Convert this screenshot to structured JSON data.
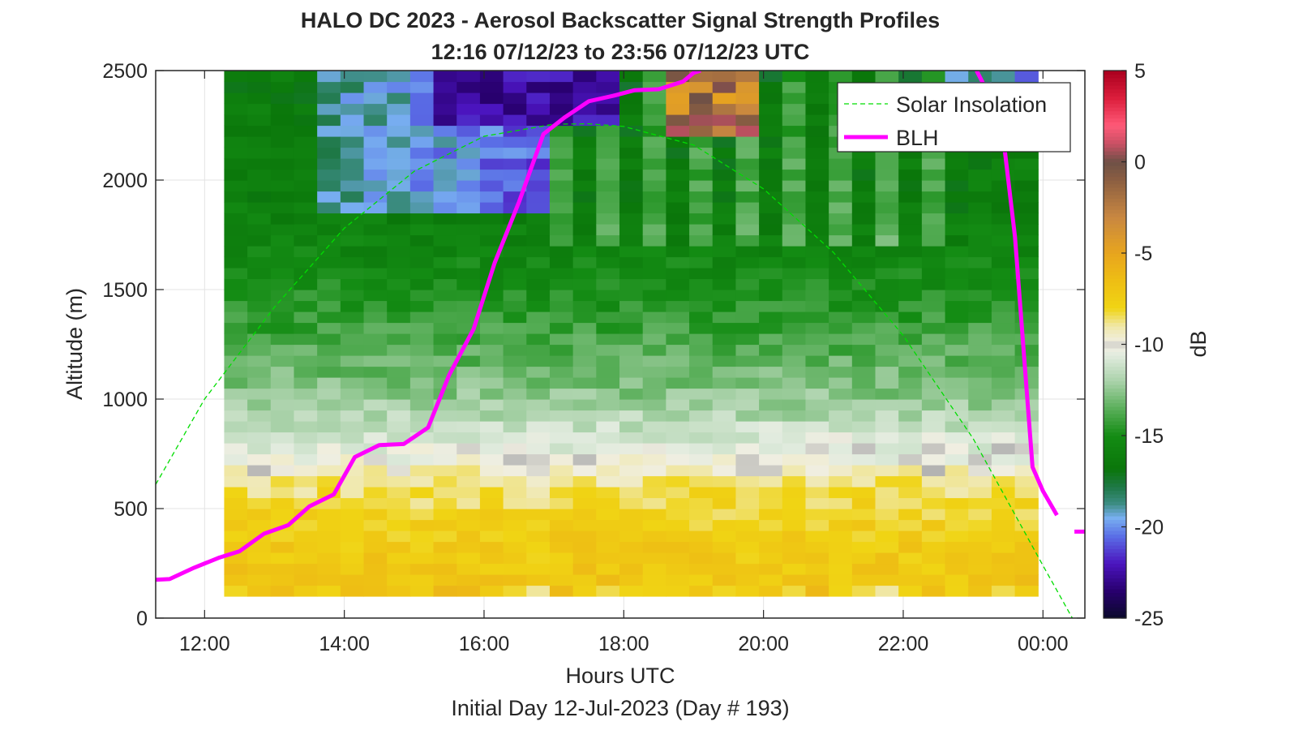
{
  "chart_data": {
    "type": "heatmap",
    "title": "HALO DC 2023 - Aerosol Backscatter Signal Strength Profiles",
    "subtitle": "12:16 07/12/23 to 23:56 07/12/23  UTC",
    "xlabel": "Hours UTC",
    "xlabel2": "Initial Day 12-Jul-2023 (Day # 193)",
    "ylabel": "Altitude (m)",
    "colorbar_label": "dB",
    "xlim_hours": [
      11.3,
      24.6
    ],
    "ylim": [
      0,
      2500
    ],
    "x_ticks": [
      {
        "value": 12,
        "label": "12:00"
      },
      {
        "value": 14,
        "label": "14:00"
      },
      {
        "value": 16,
        "label": "16:00"
      },
      {
        "value": 18,
        "label": "18:00"
      },
      {
        "value": 20,
        "label": "20:00"
      },
      {
        "value": 22,
        "label": "22:00"
      },
      {
        "value": 24,
        "label": "00:00"
      }
    ],
    "y_ticks": [
      {
        "value": 0,
        "label": "0"
      },
      {
        "value": 500,
        "label": "500"
      },
      {
        "value": 1000,
        "label": "1000"
      },
      {
        "value": 1500,
        "label": "1500"
      },
      {
        "value": 2000,
        "label": "2000"
      },
      {
        "value": 2500,
        "label": "2500"
      }
    ],
    "colorbar_range_db": [
      -25,
      5
    ],
    "colorbar_ticks": [
      {
        "value": 5,
        "label": "5"
      },
      {
        "value": 0,
        "label": "0"
      },
      {
        "value": -5,
        "label": "-5"
      },
      {
        "value": -10,
        "label": "-10"
      },
      {
        "value": -15,
        "label": "-15"
      },
      {
        "value": -20,
        "label": "-20"
      },
      {
        "value": -25,
        "label": "-25"
      }
    ],
    "heatmap": {
      "x_start_hours": 12.28,
      "x_end_hours": 23.93,
      "altitude_bottom_m": 100,
      "altitude_top_m": 2500,
      "description_note": "",
      "value_profile_db": [
        {
          "altitude": 125,
          "db": -7
        },
        {
          "altitude": 400,
          "db": -7.5
        },
        {
          "altitude": 600,
          "db": -8.5
        },
        {
          "altitude": 720,
          "db": -10
        },
        {
          "altitude": 850,
          "db": -11
        },
        {
          "altitude": 1000,
          "db": -12.5
        },
        {
          "altitude": 1200,
          "db": -13.5
        },
        {
          "altitude": 1500,
          "db": -15
        },
        {
          "altitude": 1800,
          "db": -16
        },
        {
          "altitude": 2500,
          "db": -16.5
        }
      ]
    },
    "series": [
      {
        "name": "Solar Insolation",
        "style": "dashed",
        "color": "#00dd00",
        "x": [
          11.3,
          12.0,
          13.0,
          14.0,
          15.0,
          16.0,
          17.0,
          17.5,
          18.0,
          19.0,
          20.0,
          21.0,
          22.0,
          23.0,
          24.0,
          24.42
        ],
        "y": [
          610,
          1000,
          1420,
          1780,
          2040,
          2200,
          2255,
          2257,
          2245,
          2160,
          1960,
          1670,
          1290,
          820,
          240,
          0
        ]
      },
      {
        "name": "BLH",
        "style": "solid",
        "color": "#ff00ff",
        "x": [
          11.3,
          11.5,
          11.85,
          12.2,
          12.5,
          12.85,
          13.2,
          13.5,
          13.85,
          14.15,
          14.5,
          14.85,
          15.2,
          15.5,
          15.85,
          16.15,
          16.5,
          16.85,
          17.15,
          17.5,
          17.85,
          18.15,
          18.5,
          18.85,
          19.0,
          19.1
        ],
        "y": [
          175,
          178,
          230,
          275,
          305,
          385,
          425,
          510,
          565,
          735,
          790,
          795,
          870,
          1110,
          1320,
          1620,
          1900,
          2210,
          2285,
          2360,
          2385,
          2410,
          2415,
          2450,
          2490,
          2500
        ]
      },
      {
        "name": "BLH",
        "style": "solid",
        "color": "#ff00ff",
        "x": [
          23.05,
          23.4,
          23.6,
          23.85,
          24.0,
          24.2
        ],
        "y": [
          2500,
          2280,
          1740,
          690,
          580,
          470
        ]
      },
      {
        "name": "BLH",
        "style": "solid",
        "color": "#ff00ff",
        "x": [
          24.45,
          24.6
        ],
        "y": [
          395,
          395
        ]
      }
    ],
    "legend": {
      "placement": "top-right",
      "entries": [
        {
          "label": "Solar Insolation",
          "color": "#00dd00",
          "style": "dashed"
        },
        {
          "label": "BLH",
          "color": "#ff00ff",
          "style": "solid"
        }
      ]
    },
    "grid": true
  }
}
